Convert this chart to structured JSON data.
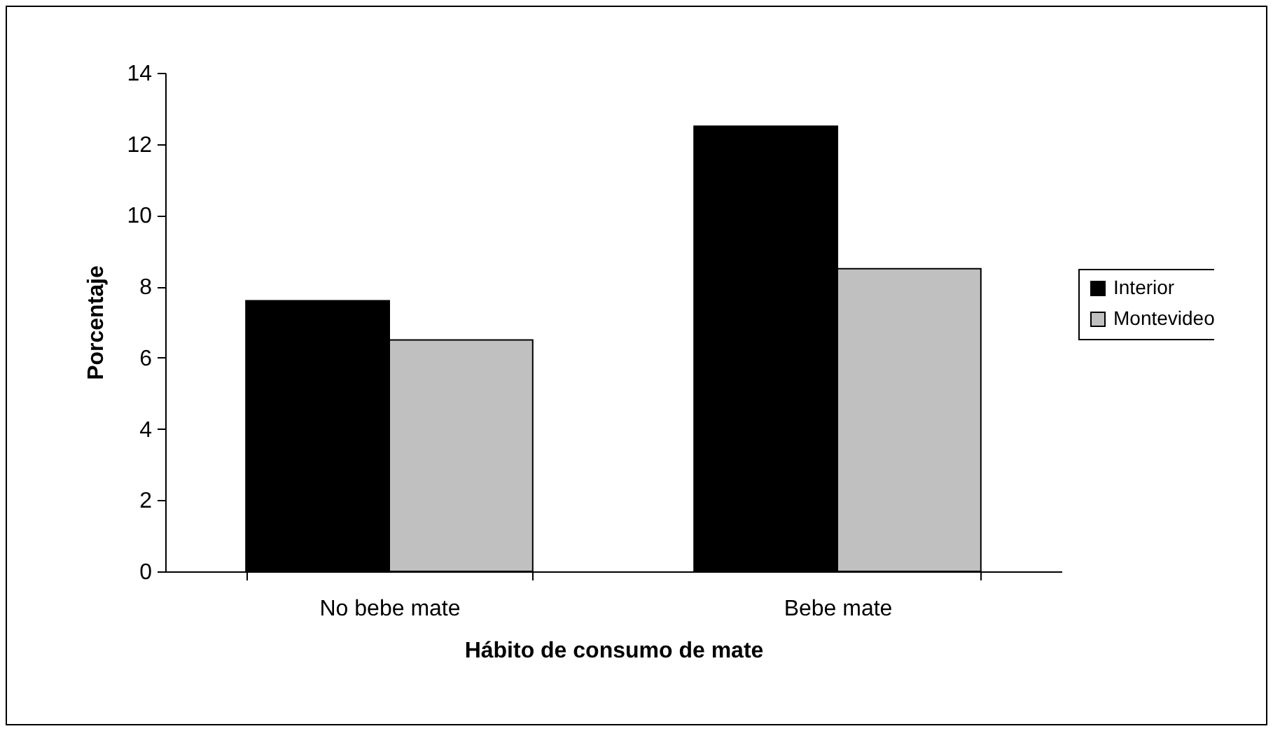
{
  "chart_data": {
    "type": "bar",
    "xlabel": "Hábito de consumo de mate",
    "ylabel": "Porcentaje",
    "categories": [
      "No bebe mate",
      "Bebe mate"
    ],
    "series": [
      {
        "name": "Interior",
        "color": "#000000",
        "values": [
          7.6,
          12.5
        ]
      },
      {
        "name": "Montevideo",
        "color": "#c0c0c0",
        "values": [
          6.5,
          8.5
        ]
      }
    ],
    "ylim": [
      0,
      14
    ],
    "yticks": [
      0,
      2,
      4,
      6,
      8,
      10,
      12,
      14
    ],
    "grid": false,
    "legend": "right"
  }
}
